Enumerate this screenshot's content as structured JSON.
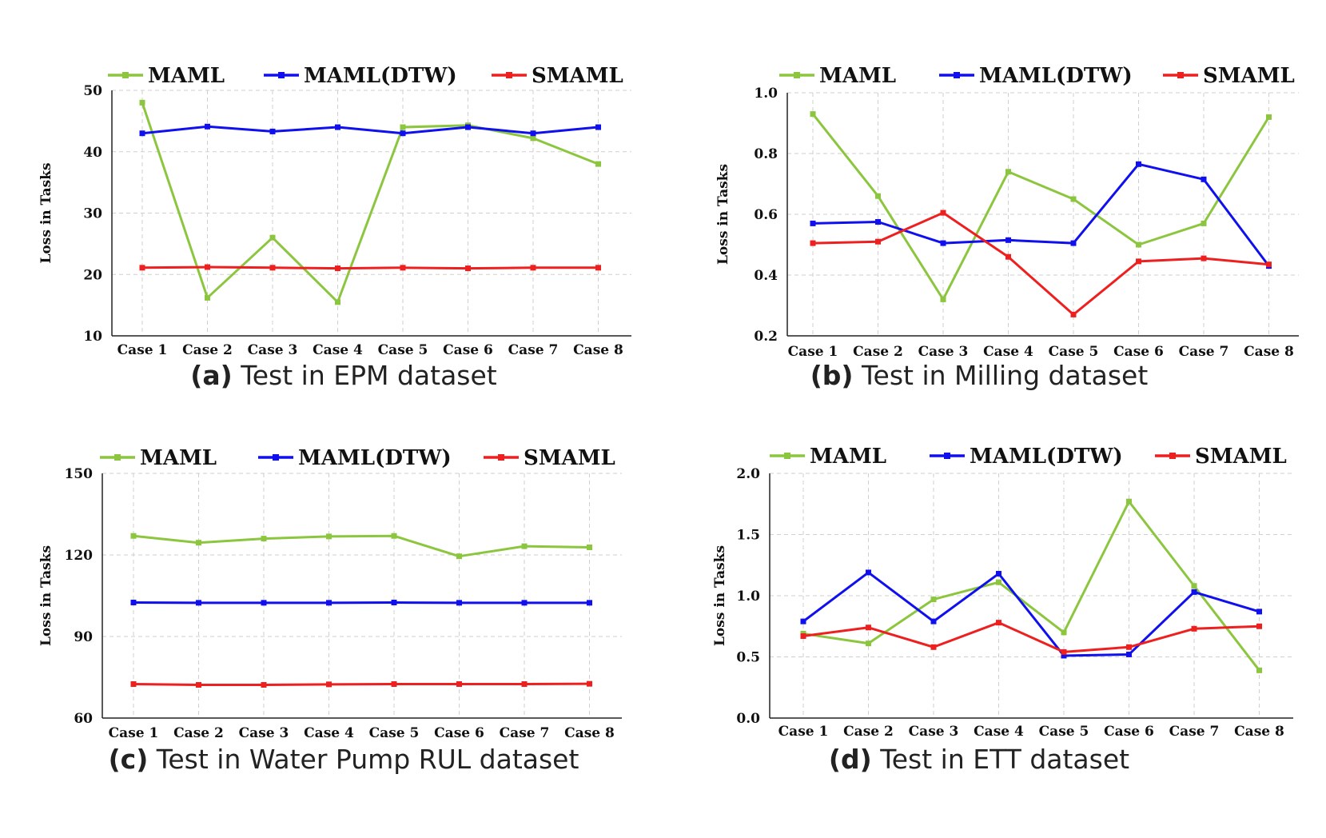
{
  "colors": {
    "MAML": "#8cc63f",
    "MAML(DTW)": "#1010ee",
    "SMAML": "#ee1f1f"
  },
  "chart_data": [
    {
      "type": "line",
      "caption_tag": "(a)",
      "caption_text": "Test in EPM dataset",
      "ylabel": "Loss in Tasks",
      "categories": [
        "Case 1",
        "Case 2",
        "Case 3",
        "Case 4",
        "Case 5",
        "Case 6",
        "Case 7",
        "Case 8"
      ],
      "ylim": [
        10,
        50
      ],
      "yticks": [
        "10",
        "20",
        "30",
        "40",
        "50"
      ],
      "grid": true,
      "legend": "top",
      "series": [
        {
          "name": "MAML",
          "values": [
            48,
            16.2,
            26,
            15.5,
            44,
            44.3,
            42.2,
            38
          ]
        },
        {
          "name": "MAML(DTW)",
          "values": [
            43,
            44.1,
            43.3,
            44,
            43,
            44,
            43,
            44
          ]
        },
        {
          "name": "SMAML",
          "values": [
            21.1,
            21.2,
            21.1,
            21.0,
            21.1,
            21.0,
            21.1,
            21.1
          ]
        }
      ]
    },
    {
      "type": "line",
      "caption_tag": "(b)",
      "caption_text": "Test in Milling dataset",
      "ylabel": "Loss in Tasks",
      "categories": [
        "Case 1",
        "Case 2",
        "Case 3",
        "Case 4",
        "Case 5",
        "Case 6",
        "Case 7",
        "Case 8"
      ],
      "ylim": [
        0.2,
        1.0
      ],
      "yticks": [
        "0.2",
        "0.4",
        "0.6",
        "0.8",
        "1.0"
      ],
      "grid": true,
      "legend": "top",
      "series": [
        {
          "name": "MAML",
          "values": [
            0.93,
            0.66,
            0.32,
            0.74,
            0.65,
            0.5,
            0.57,
            0.92
          ]
        },
        {
          "name": "MAML(DTW)",
          "values": [
            0.57,
            0.575,
            0.505,
            0.515,
            0.505,
            0.765,
            0.715,
            0.43
          ]
        },
        {
          "name": "SMAML",
          "values": [
            0.505,
            0.51,
            0.605,
            0.46,
            0.27,
            0.445,
            0.455,
            0.435
          ]
        }
      ]
    },
    {
      "type": "line",
      "caption_tag": "(c)",
      "caption_text": "Test in Water Pump RUL dataset",
      "ylabel": "Loss in Tasks",
      "categories": [
        "Case 1",
        "Case 2",
        "Case 3",
        "Case 4",
        "Case 5",
        "Case 6",
        "Case 7",
        "Case 8"
      ],
      "ylim": [
        60,
        150
      ],
      "yticks": [
        "60",
        "90",
        "120",
        "150"
      ],
      "grid": true,
      "legend": "top",
      "series": [
        {
          "name": "MAML",
          "values": [
            127,
            124.5,
            126,
            126.8,
            127,
            119.5,
            123.2,
            122.8
          ]
        },
        {
          "name": "MAML(DTW)",
          "values": [
            102.5,
            102.4,
            102.4,
            102.4,
            102.5,
            102.4,
            102.4,
            102.4
          ]
        },
        {
          "name": "SMAML",
          "values": [
            72.5,
            72.2,
            72.2,
            72.4,
            72.5,
            72.5,
            72.5,
            72.6
          ]
        }
      ]
    },
    {
      "type": "line",
      "caption_tag": "(d)",
      "caption_text": "Test in ETT dataset",
      "ylabel": "Loss in Tasks",
      "categories": [
        "Case 1",
        "Case 2",
        "Case 3",
        "Case 4",
        "Case 5",
        "Case 6",
        "Case 7",
        "Case 8"
      ],
      "ylim": [
        0.0,
        2.0
      ],
      "yticks": [
        "0.0",
        "0.5",
        "1.0",
        "1.5",
        "2.0"
      ],
      "grid": true,
      "legend": "top",
      "series": [
        {
          "name": "MAML",
          "values": [
            0.69,
            0.61,
            0.97,
            1.11,
            0.7,
            1.77,
            1.08,
            0.39
          ]
        },
        {
          "name": "MAML(DTW)",
          "values": [
            0.79,
            1.19,
            0.79,
            1.18,
            0.51,
            0.52,
            1.03,
            0.87
          ]
        },
        {
          "name": "SMAML",
          "values": [
            0.67,
            0.74,
            0.58,
            0.78,
            0.54,
            0.58,
            0.73,
            0.75
          ]
        }
      ]
    }
  ]
}
